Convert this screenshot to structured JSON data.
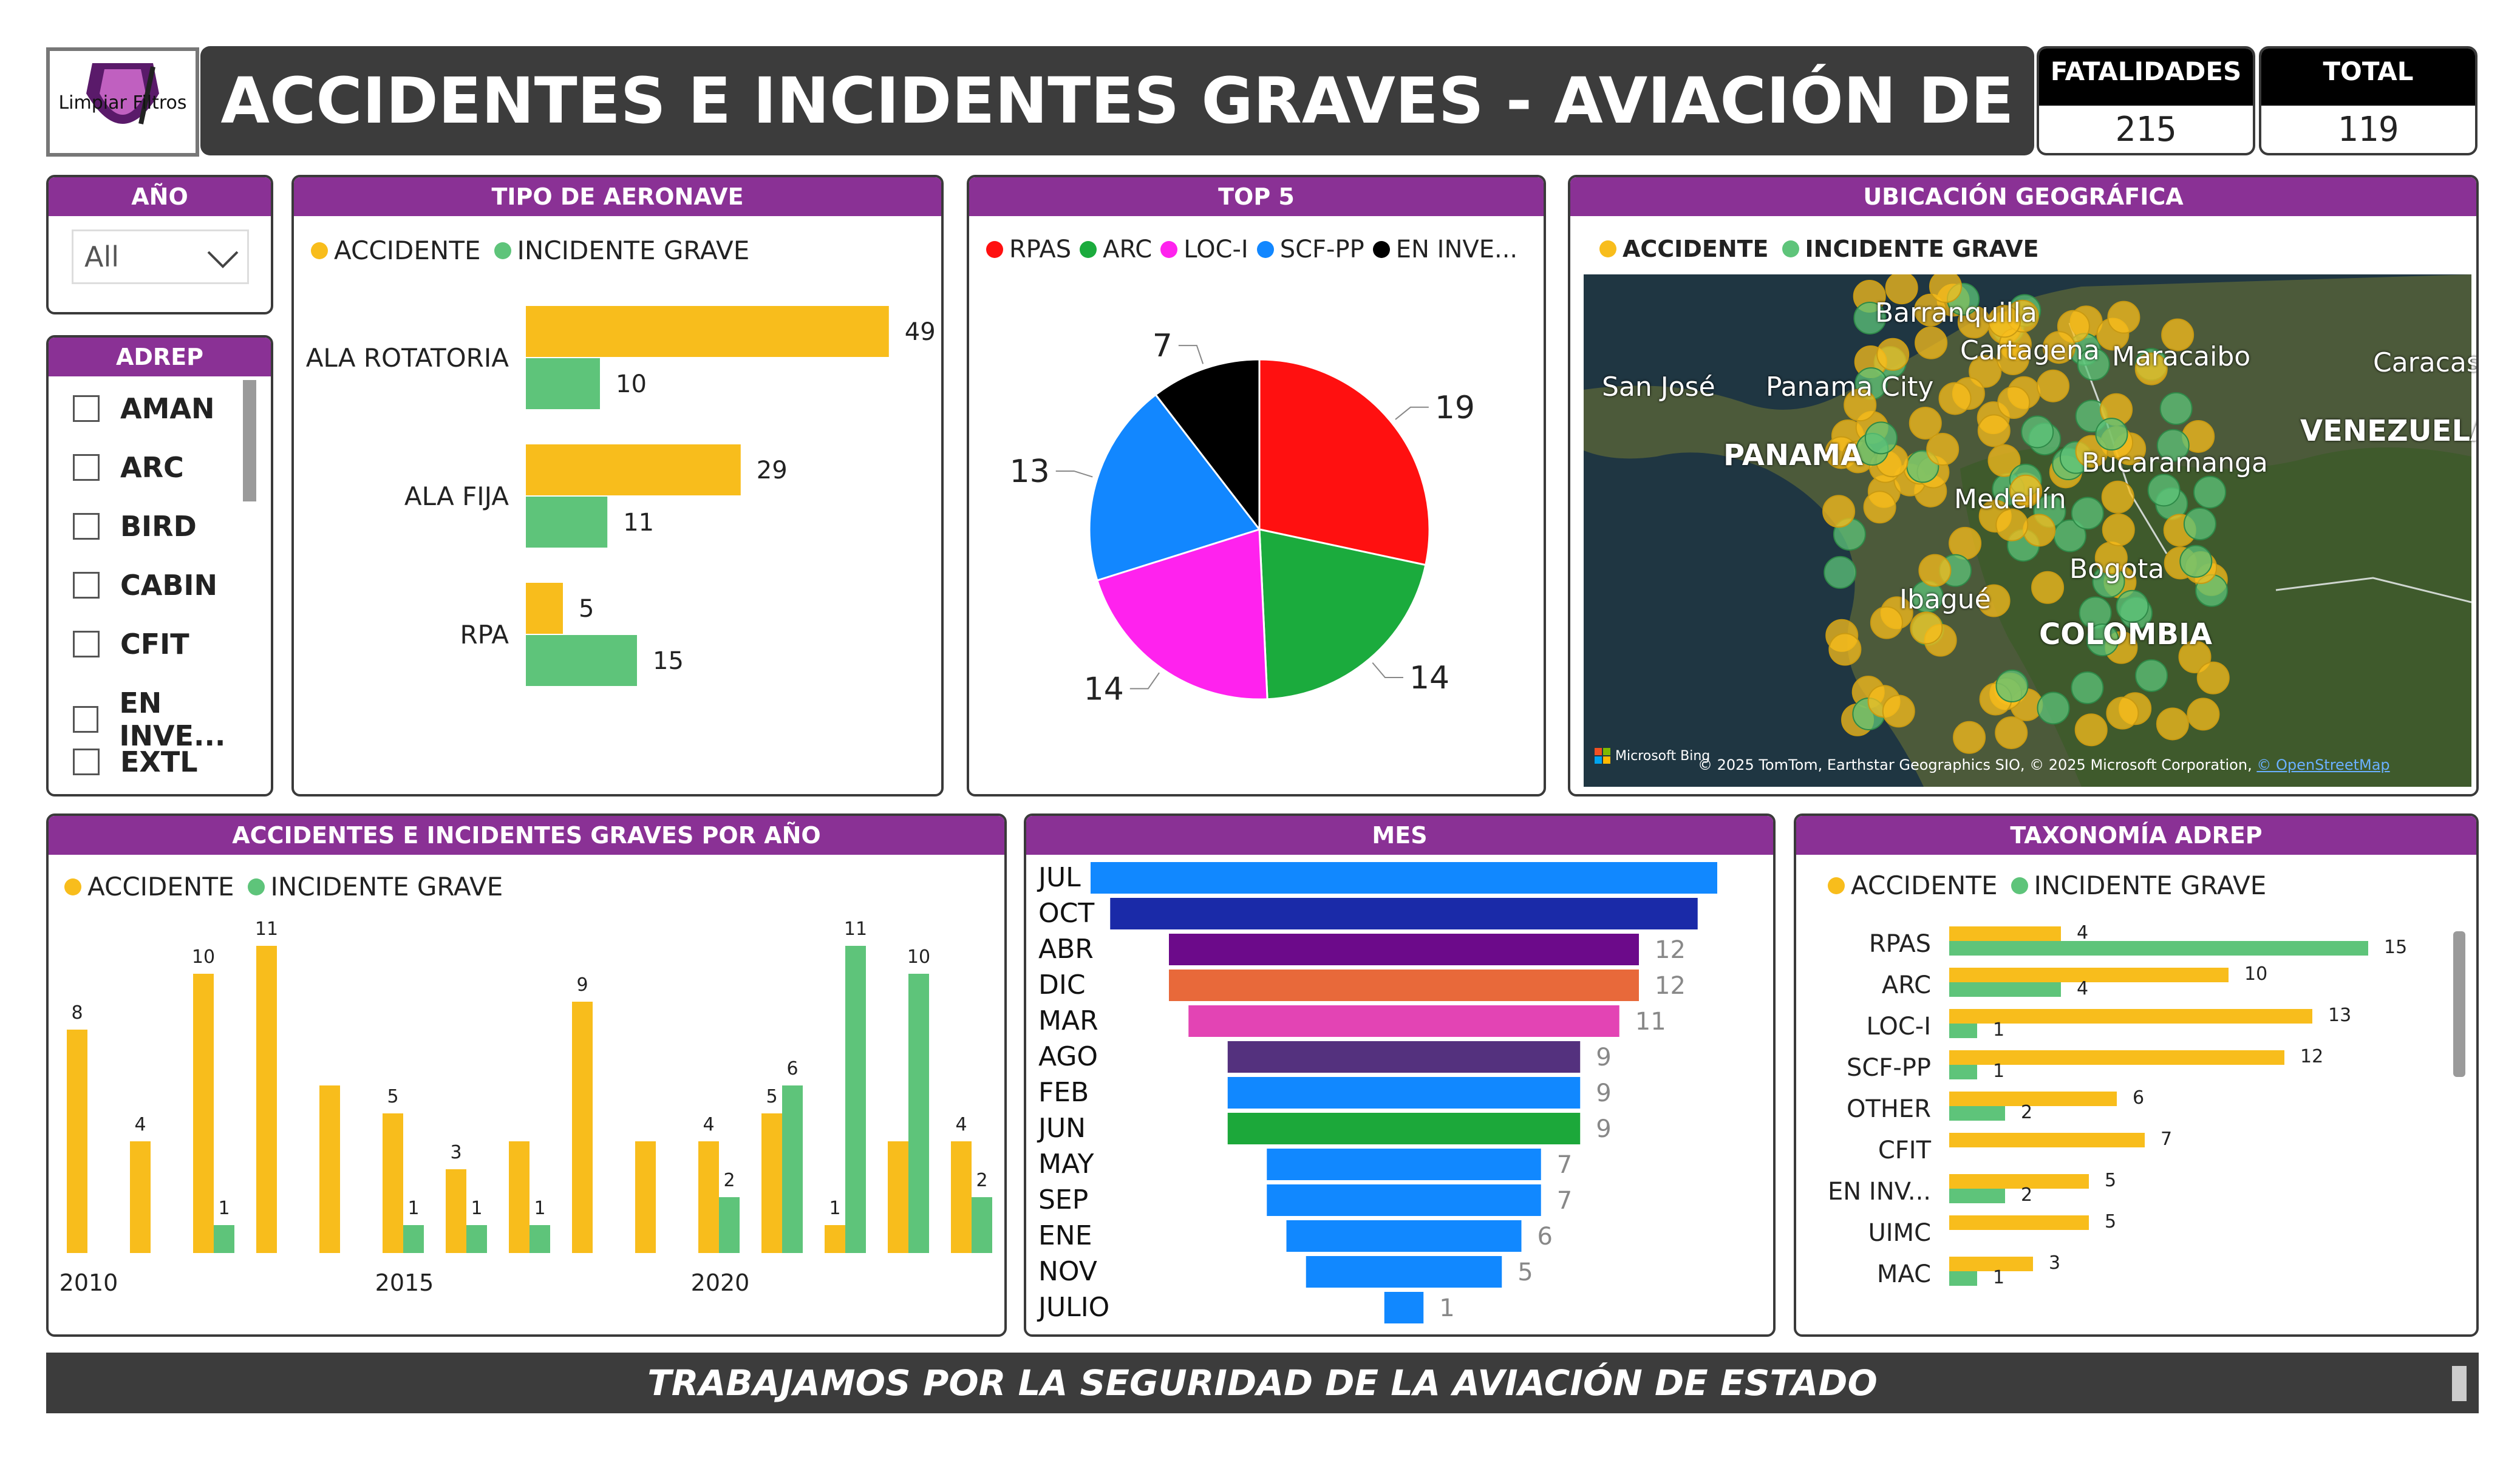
{
  "header": {
    "title": "ACCIDENTES E INCIDENTES GRAVES - AVIACIÓN DE ESTADO",
    "logo_text": "Limpiar Filtros",
    "kpis": [
      {
        "label": "FATALIDADES",
        "value": "215"
      },
      {
        "label": "TOTAL",
        "value": "119"
      }
    ]
  },
  "colors": {
    "accidente": "#f8bd1c",
    "incidente": "#5ec47a",
    "purple": "#8a3195",
    "dark": "#3a3a3a"
  },
  "legend": {
    "accidente": "ACCIDENTE",
    "incidente": "INCIDENTE GRAVE"
  },
  "filters": {
    "year": {
      "title": "AÑO",
      "value": "All"
    },
    "adrep": {
      "title": "ADREP",
      "items": [
        "AMAN",
        "ARC",
        "BIRD",
        "CABIN",
        "CFIT",
        "EN INVE...",
        "EXTL"
      ]
    }
  },
  "tipo_aeronave": {
    "title": "TIPO DE AERONAVE",
    "chart_data": {
      "type": "bar",
      "orientation": "horizontal",
      "categories": [
        "ALA ROTATORIA",
        "ALA FIJA",
        "RPA"
      ],
      "series": [
        {
          "name": "ACCIDENTE",
          "values": [
            49,
            29,
            5
          ]
        },
        {
          "name": "INCIDENTE GRAVE",
          "values": [
            10,
            11,
            15
          ]
        }
      ]
    }
  },
  "top5": {
    "title": "TOP 5",
    "chart_data": {
      "type": "pie",
      "labels": [
        "RPAS",
        "ARC",
        "LOC-I",
        "SCF-PP",
        "EN INVE..."
      ],
      "values": [
        19,
        14,
        14,
        13,
        7
      ],
      "colors": [
        "#ff1010",
        "#1bab3d",
        "#ff22ee",
        "#1287ff",
        "#000000"
      ]
    }
  },
  "mapa": {
    "title": "UBICACIÓN GEOGRÁFICA",
    "places": [
      {
        "name": "Barranquilla",
        "bold": false
      },
      {
        "name": "Cartagena",
        "bold": false
      },
      {
        "name": "Maracaibo",
        "bold": false
      },
      {
        "name": "Caracas",
        "bold": false
      },
      {
        "name": "San José",
        "bold": false
      },
      {
        "name": "Panama City",
        "bold": false
      },
      {
        "name": "PANAMA",
        "bold": true
      },
      {
        "name": "VENEZUELA",
        "bold": true
      },
      {
        "name": "Bucaramanga",
        "bold": false
      },
      {
        "name": "Medellín",
        "bold": false
      },
      {
        "name": "Bogota",
        "bold": false
      },
      {
        "name": "Ibagué",
        "bold": false
      },
      {
        "name": "COLOMBIA",
        "bold": true
      }
    ],
    "bing": "Microsoft Bing",
    "copyright": "© 2025 TomTom, Earthstar Geographics SIO, © 2025 Microsoft Corporation,",
    "osm": "© OpenStreetMap"
  },
  "por_anio": {
    "title": "ACCIDENTES E INCIDENTES GRAVES POR AÑO",
    "chart_data": {
      "type": "bar",
      "x": [
        2010,
        2011,
        2012,
        2013,
        2014,
        2015,
        2016,
        2017,
        2018,
        2019,
        2020,
        2021,
        2022,
        2023,
        2024
      ],
      "tick_labels": [
        "2010",
        "2015",
        "2020"
      ],
      "series": [
        {
          "name": "ACCIDENTE",
          "values": [
            8,
            4,
            10,
            11,
            6,
            5,
            3,
            4,
            9,
            4,
            4,
            5,
            1,
            4,
            4
          ]
        },
        {
          "name": "INCIDENTE GRAVE",
          "values": [
            0,
            0,
            1,
            0,
            0,
            1,
            1,
            1,
            0,
            0,
            2,
            6,
            11,
            10,
            2
          ]
        }
      ],
      "visible_labels": {
        "ACCIDENTE": [
          8,
          4,
          10,
          11,
          null,
          5,
          3,
          null,
          9,
          null,
          4,
          5,
          1,
          null,
          4
        ],
        "INCIDENTE GRAVE": [
          null,
          null,
          1,
          null,
          null,
          1,
          1,
          1,
          null,
          null,
          2,
          6,
          11,
          10,
          2
        ]
      }
    }
  },
  "mes": {
    "title": "MES",
    "chart_data": {
      "type": "bar",
      "orientation": "funnel",
      "categories": [
        "JUL",
        "OCT",
        "ABR",
        "DIC",
        "MAR",
        "AGO",
        "FEB",
        "JUN",
        "MAY",
        "SEP",
        "ENE",
        "NOV",
        "JULIO"
      ],
      "values": [
        16,
        15,
        12,
        12,
        11,
        9,
        9,
        9,
        7,
        7,
        6,
        5,
        1
      ],
      "value_labels": [
        null,
        null,
        "12",
        "12",
        "11",
        "9",
        "9",
        "9",
        "7",
        "7",
        "6",
        "5",
        "1"
      ],
      "colors": [
        "#1188ff",
        "#1a2aa8",
        "#6c0a8a",
        "#e8693a",
        "#e344b4",
        "#54317e",
        "#1188ff",
        "#1ca83a",
        "#1188ff",
        "#1188ff",
        "#1188ff",
        "#1188ff",
        "#1188ff"
      ]
    }
  },
  "taxonomia": {
    "title": "TAXONOMÍA ADREP",
    "chart_data": {
      "type": "bar",
      "orientation": "horizontal",
      "categories": [
        "RPAS",
        "ARC",
        "LOC-I",
        "SCF-PP",
        "OTHER",
        "CFIT",
        "EN INV...",
        "UIMC",
        "MAC"
      ],
      "series": [
        {
          "name": "ACCIDENTE",
          "values": [
            4,
            10,
            13,
            12,
            6,
            7,
            5,
            5,
            3
          ]
        },
        {
          "name": "INCIDENTE GRAVE",
          "values": [
            15,
            4,
            1,
            1,
            2,
            0,
            2,
            0,
            1
          ]
        }
      ]
    }
  },
  "footer": {
    "text": "TRABAJAMOS POR LA SEGURIDAD DE LA AVIACIÓN DE ESTADO"
  }
}
